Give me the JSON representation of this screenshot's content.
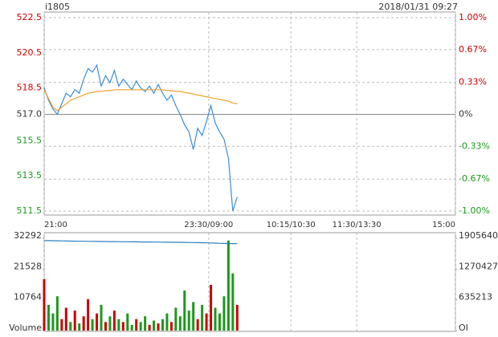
{
  "header": {
    "symbol": "i1805",
    "datetime": "2018/01/31 09:27"
  },
  "chart_data": [
    {
      "type": "line",
      "x": [
        0,
        4,
        8,
        12,
        16,
        20,
        24,
        28,
        32,
        36,
        40,
        44,
        48,
        52,
        56,
        60,
        64,
        68,
        72,
        76,
        80,
        84,
        88,
        92,
        96,
        100,
        104,
        108,
        112,
        116,
        120,
        124,
        128,
        132,
        136,
        140,
        144,
        148,
        152,
        156,
        160,
        164,
        168,
        172,
        176
      ],
      "series": [
        {
          "color": "#3a8fd8",
          "values": [
            518.5,
            517.8,
            517.3,
            517.0,
            517.6,
            518.2,
            518.0,
            518.4,
            518.2,
            519.0,
            519.6,
            519.4,
            519.8,
            518.6,
            519.2,
            518.8,
            519.5,
            518.6,
            519.0,
            518.7,
            518.4,
            518.9,
            518.5,
            518.3,
            518.6,
            518.2,
            518.7,
            518.2,
            517.8,
            518.1,
            517.5,
            517.0,
            516.4,
            516.0,
            515.0,
            516.2,
            515.8,
            516.6,
            517.5,
            516.5,
            516.0,
            515.6,
            514.5,
            511.5,
            512.3
          ]
        },
        {
          "color": "#f0a030",
          "values": [
            518.4,
            517.9,
            517.4,
            517.2,
            517.4,
            517.6,
            517.8,
            517.9,
            518.0,
            518.1,
            518.2,
            518.25,
            518.3,
            518.3,
            518.35,
            518.35,
            518.4,
            518.4,
            518.4,
            518.4,
            518.4,
            518.4,
            518.4,
            518.4,
            518.4,
            518.4,
            518.4,
            518.4,
            518.35,
            518.35,
            518.3,
            518.3,
            518.25,
            518.2,
            518.15,
            518.1,
            518.05,
            518.0,
            517.95,
            517.9,
            517.85,
            517.8,
            517.75,
            517.65,
            517.6
          ]
        }
      ],
      "xlim": [
        0,
        375
      ],
      "xticks": [
        {
          "value": 0,
          "label": "21:00"
        },
        {
          "value": 150,
          "label": "23:30/09:00"
        },
        {
          "value": 225,
          "label": "10:15/10:30"
        },
        {
          "value": 285,
          "label": "11:30/13:30"
        },
        {
          "value": 375,
          "label": "15:00"
        }
      ],
      "ylim": [
        511.5,
        522.5
      ],
      "yticks": [
        {
          "value": 522.5,
          "label": "522.5"
        },
        {
          "value": 520.5,
          "label": "520.5"
        },
        {
          "value": 518.5,
          "label": "518.5"
        },
        {
          "value": 517,
          "label": "517.0"
        },
        {
          "value": 515.5,
          "label": "515.5"
        },
        {
          "value": 513.5,
          "label": "513.5"
        },
        {
          "value": 511.5,
          "label": "511.5"
        }
      ],
      "y2lim": [
        -1,
        1
      ],
      "y2ticks": [
        {
          "value": 1,
          "label": "1.00%"
        },
        {
          "value": 0.67,
          "label": "0.67%"
        },
        {
          "value": 0.33,
          "label": "0.33%"
        },
        {
          "value": 0,
          "label": "0%"
        },
        {
          "value": -0.33,
          "label": "-0.33%"
        },
        {
          "value": -0.67,
          "label": "-0.67%"
        },
        {
          "value": -1,
          "label": "-1.00%"
        }
      ],
      "up_color": "#cc0000",
      "down_color": "#1a9a1a",
      "grid": true
    },
    {
      "type": "bar",
      "x": [
        0,
        4,
        8,
        12,
        16,
        20,
        24,
        28,
        32,
        36,
        40,
        44,
        48,
        52,
        56,
        60,
        64,
        68,
        72,
        76,
        80,
        84,
        88,
        92,
        96,
        100,
        104,
        108,
        112,
        116,
        120,
        124,
        128,
        132,
        136,
        140,
        144,
        148,
        152,
        156,
        160,
        164,
        168,
        172,
        176
      ],
      "values": [
        18000,
        9000,
        6000,
        12000,
        4000,
        8000,
        3000,
        7000,
        2500,
        5000,
        11000,
        4000,
        6000,
        9000,
        3000,
        5000,
        7000,
        4000,
        3000,
        6000,
        2000,
        4000,
        3000,
        5000,
        2000,
        3500,
        2500,
        4000,
        6000,
        3000,
        8000,
        5000,
        14000,
        7000,
        10000,
        4000,
        9000,
        6000,
        16000,
        8000,
        6000,
        12000,
        31500,
        20000,
        9000
      ],
      "oi": [
        1860000,
        1858000,
        1856000,
        1854000,
        1852000,
        1850000,
        1848000,
        1846000,
        1845000,
        1844000,
        1843000,
        1842000,
        1841000,
        1840000,
        1839000,
        1838000,
        1837000,
        1836000,
        1835000,
        1834000,
        1833000,
        1832000,
        1831000,
        1830000,
        1829000,
        1828000,
        1827000,
        1826000,
        1825000,
        1824000,
        1823000,
        1822000,
        1821000,
        1820000,
        1818000,
        1816000,
        1814000,
        1812000,
        1810000,
        1806000,
        1802000,
        1800000,
        1798000,
        1796000,
        1795000
      ],
      "oi_color": "#2a7fc0",
      "xlim": [
        0,
        375
      ],
      "ylim": [
        0,
        32292
      ],
      "yticks": [
        32292,
        21528,
        10764,
        {
          "value": 0,
          "label": "Volume"
        }
      ],
      "y2lim": [
        0,
        1905640
      ],
      "y2ticks": [
        1905640,
        1270427,
        635213,
        {
          "value": 0,
          "label": "OI"
        }
      ]
    }
  ]
}
